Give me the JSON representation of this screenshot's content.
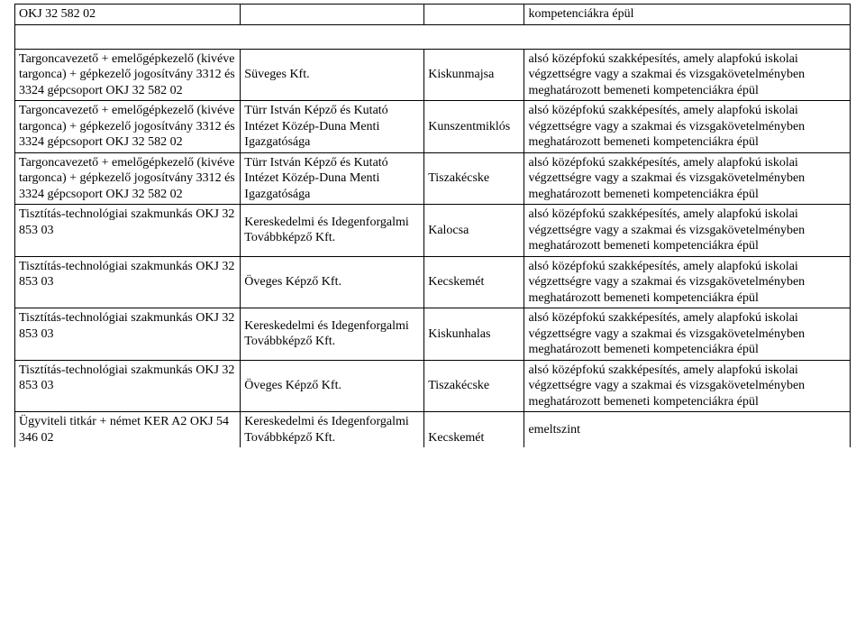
{
  "rows": [
    {
      "col1": [
        "OKJ 32 582 02"
      ],
      "col2": [],
      "col3": [],
      "col4": [
        "kompetenciákra épül"
      ]
    },
    {
      "spacer": true
    },
    {
      "col1": [
        "Targoncavezető + emelőgépkezelő (kivéve targonca) + gépkezelő jogosítvány 3312 és 3324 gépcsoport OKJ 32 582 02"
      ],
      "col2": [
        "Süveges Kft."
      ],
      "col3": [
        "Kiskunmajsa"
      ],
      "col4": [
        "alsó középfokú szakképesítés, amely alapfokú iskolai végzettségre vagy a szakmai és vizsgakövetelményben meghatározott bemeneti kompetenciákra épül"
      ]
    },
    {
      "col1": [
        "Targoncavezető + emelőgépkezelő (kivéve targonca) + gépkezelő jogosítvány 3312 és 3324 gépcsoport OKJ 32 582 02"
      ],
      "col2": [
        "Türr István Képző és Kutató Intézet Közép-Duna Menti Igazgatósága"
      ],
      "col3": [
        "Kunszentmiklós"
      ],
      "col4": [
        "alsó középfokú szakképesítés, amely alapfokú iskolai végzettségre vagy a szakmai és vizsgakövetelményben meghatározott bemeneti kompetenciákra épül"
      ]
    },
    {
      "col1": [
        "Targoncavezető + emelőgépkezelő (kivéve targonca) + gépkezelő jogosítvány 3312 és 3324 gépcsoport OKJ 32 582 02"
      ],
      "col2": [
        "Türr István Képző és Kutató Intézet Közép-Duna Menti Igazgatósága"
      ],
      "col3": [
        "Tiszakécske"
      ],
      "col4": [
        "alsó középfokú szakképesítés, amely alapfokú iskolai végzettségre vagy a szakmai és vizsgakövetelményben meghatározott bemeneti kompetenciákra épül"
      ]
    },
    {
      "col1": [
        "Tisztítás-technológiai szakmunkás OKJ 32 853 03"
      ],
      "col2": [
        "Kereskedelmi és Idegenforgalmi Továbbképző Kft."
      ],
      "col3": [
        "Kalocsa"
      ],
      "col4": [
        "alsó középfokú szakképesítés, amely alapfokú iskolai végzettségre vagy a szakmai és vizsgakövetelményben meghatározott bemeneti kompetenciákra épül"
      ]
    },
    {
      "col1": [
        "Tisztítás-technológiai szakmunkás OKJ 32 853 03"
      ],
      "col2": [
        "Öveges Képző Kft."
      ],
      "col3": [
        "Kecskemét"
      ],
      "col4": [
        "alsó középfokú szakképesítés, amely alapfokú iskolai végzettségre vagy a szakmai és vizsgakövetelményben meghatározott bemeneti kompetenciákra épül"
      ]
    },
    {
      "col1": [
        "Tisztítás-technológiai szakmunkás OKJ 32 853 03"
      ],
      "col2": [
        "Kereskedelmi és Idegenforgalmi Továbbképző Kft."
      ],
      "col3": [
        "Kiskunhalas"
      ],
      "col4": [
        "alsó középfokú szakképesítés, amely alapfokú iskolai végzettségre vagy a szakmai és vizsgakövetelményben meghatározott bemeneti kompetenciákra épül"
      ]
    },
    {
      "col1": [
        "Tisztítás-technológiai szakmunkás OKJ 32 853 03"
      ],
      "col2": [
        "Öveges Képző Kft."
      ],
      "col3": [
        "Tiszakécske"
      ],
      "col4": [
        "alsó középfokú szakképesítés, amely alapfokú iskolai végzettségre vagy a szakmai és vizsgakövetelményben meghatározott bemeneti kompetenciákra épül"
      ]
    },
    {
      "last": true,
      "col1": [
        "Ügyviteli titkár + német KER A2 OKJ 54 346 02"
      ],
      "col2": [
        "Kereskedelmi és Idegenforgalmi Továbbképző Kft."
      ],
      "col3": [
        "Kecskemét"
      ],
      "col4": [
        "emeltszint"
      ]
    }
  ]
}
